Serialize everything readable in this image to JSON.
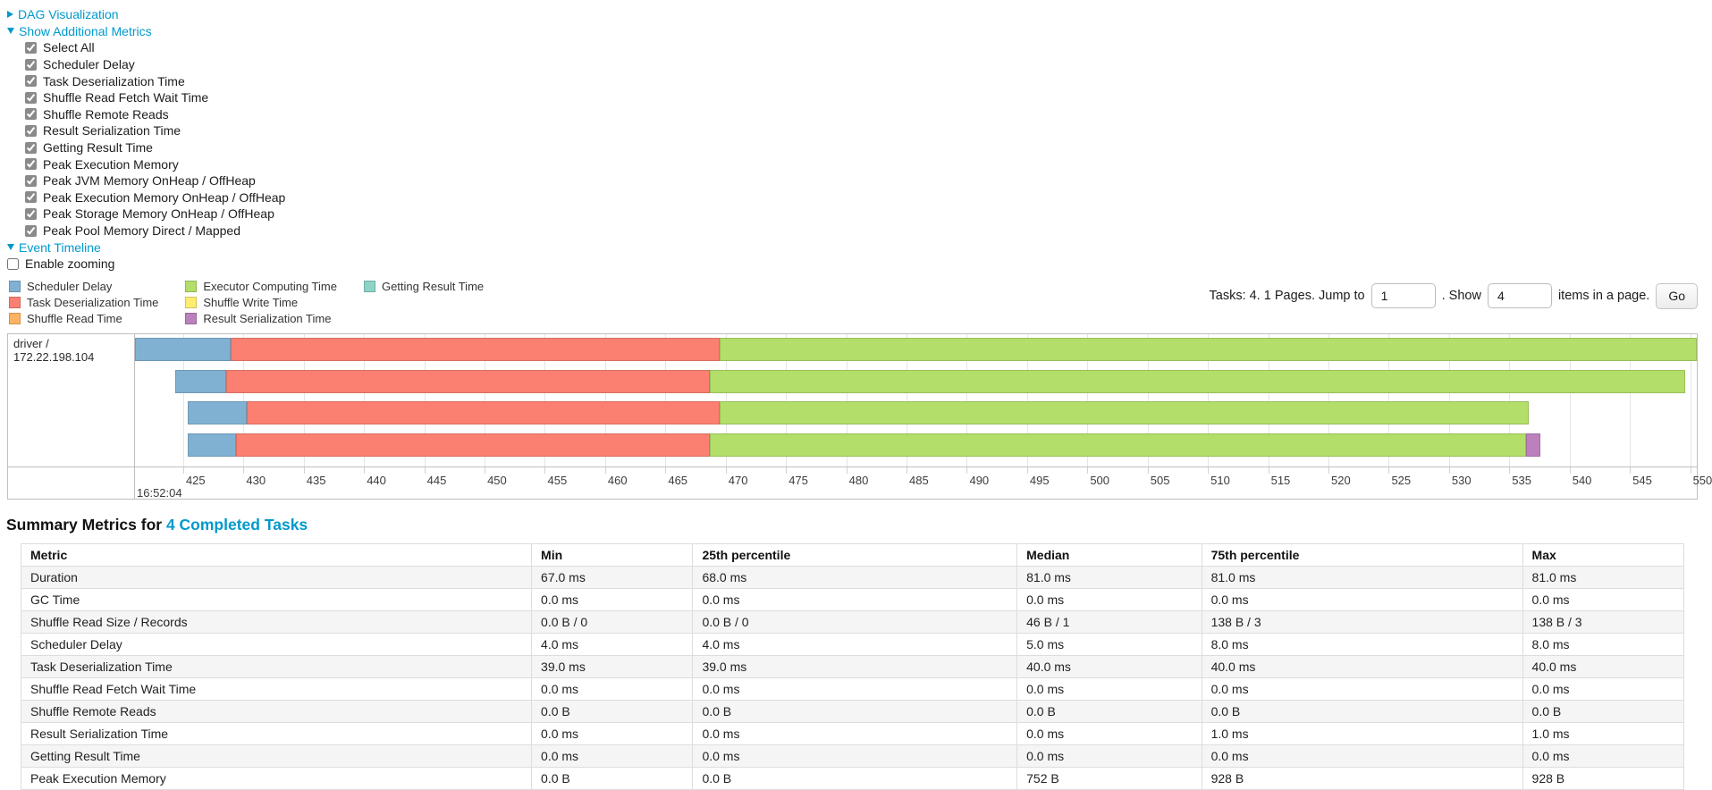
{
  "controls": {
    "dag": {
      "label": "DAG Visualization",
      "expanded": false
    },
    "metrics_toggle": {
      "label": "Show Additional Metrics",
      "expanded": true
    },
    "metric_checkboxes": [
      "Select All",
      "Scheduler Delay",
      "Task Deserialization Time",
      "Shuffle Read Fetch Wait Time",
      "Shuffle Remote Reads",
      "Result Serialization Time",
      "Getting Result Time",
      "Peak Execution Memory",
      "Peak JVM Memory OnHeap / OffHeap",
      "Peak Execution Memory OnHeap / OffHeap",
      "Peak Storage Memory OnHeap / OffHeap",
      "Peak Pool Memory Direct / Mapped"
    ],
    "event_timeline": {
      "label": "Event Timeline",
      "expanded": true
    },
    "enable_zooming": {
      "label": "Enable zooming",
      "checked": false
    }
  },
  "pagination": {
    "tasks_text": "Tasks: 4. 1 Pages. Jump to",
    "jump_value": "1",
    "show_label": ". Show",
    "show_value": "4",
    "suffix": "items in a page.",
    "go_label": "Go"
  },
  "legend": {
    "columns": [
      [
        {
          "key": "scheduler_delay",
          "label": "Scheduler Delay"
        },
        {
          "key": "task_deserialization",
          "label": "Task Deserialization Time"
        },
        {
          "key": "shuffle_read",
          "label": "Shuffle Read Time"
        }
      ],
      [
        {
          "key": "executor_computing",
          "label": "Executor Computing Time"
        },
        {
          "key": "shuffle_write",
          "label": "Shuffle Write Time"
        },
        {
          "key": "result_serialization",
          "label": "Result Serialization Time"
        }
      ],
      [
        {
          "key": "getting_result",
          "label": "Getting Result Time"
        }
      ]
    ]
  },
  "chart_data": {
    "type": "timeline-stacked-bar",
    "group_label": "driver / 172.22.198.104",
    "axis": {
      "start": 421.0,
      "end": 550.55,
      "tick_start": 425,
      "tick_step": 5,
      "tick_end": 550,
      "time_label": "16:52:04"
    },
    "colors": {
      "scheduler_delay": "#80B1D3",
      "task_deserialization": "#FB8072",
      "shuffle_read": "#FDB462",
      "executor_computing": "#B3DE69",
      "shuffle_write": "#FFED6F",
      "result_serialization": "#BC80BD",
      "getting_result": "#8DD3C7"
    },
    "tasks": [
      {
        "start": 421.0,
        "segments": [
          {
            "key": "scheduler_delay",
            "end": 428.9
          },
          {
            "key": "task_deserialization",
            "end": 469.5
          },
          {
            "key": "executor_computing",
            "end": 550.55
          }
        ]
      },
      {
        "start": 424.3,
        "segments": [
          {
            "key": "scheduler_delay",
            "end": 428.6
          },
          {
            "key": "task_deserialization",
            "end": 468.7
          },
          {
            "key": "executor_computing",
            "end": 549.6
          }
        ]
      },
      {
        "start": 425.4,
        "segments": [
          {
            "key": "scheduler_delay",
            "end": 430.3
          },
          {
            "key": "task_deserialization",
            "end": 469.5
          },
          {
            "key": "executor_computing",
            "end": 536.6
          }
        ]
      },
      {
        "start": 425.4,
        "segments": [
          {
            "key": "scheduler_delay",
            "end": 429.4
          },
          {
            "key": "task_deserialization",
            "end": 468.7
          },
          {
            "key": "executor_computing",
            "end": 536.4
          },
          {
            "key": "result_serialization",
            "end": 537.6
          }
        ]
      }
    ]
  },
  "summary": {
    "heading_prefix": "Summary Metrics for ",
    "heading_link": "4 Completed Tasks",
    "table": {
      "headers": [
        "Metric",
        "Min",
        "25th percentile",
        "Median",
        "75th percentile",
        "Max"
      ],
      "rows": [
        {
          "metric": "Duration",
          "values": [
            "67.0 ms",
            "68.0 ms",
            "81.0 ms",
            "81.0 ms",
            "81.0 ms"
          ]
        },
        {
          "metric": "GC Time",
          "values": [
            "0.0 ms",
            "0.0 ms",
            "0.0 ms",
            "0.0 ms",
            "0.0 ms"
          ]
        },
        {
          "metric": "Shuffle Read Size / Records",
          "values": [
            "0.0 B / 0",
            "0.0 B / 0",
            "46 B / 1",
            "138 B / 3",
            "138 B / 3"
          ]
        },
        {
          "metric": "Scheduler Delay",
          "values": [
            "4.0 ms",
            "4.0 ms",
            "5.0 ms",
            "8.0 ms",
            "8.0 ms"
          ]
        },
        {
          "metric": "Task Deserialization Time",
          "values": [
            "39.0 ms",
            "39.0 ms",
            "40.0 ms",
            "40.0 ms",
            "40.0 ms"
          ]
        },
        {
          "metric": "Shuffle Read Fetch Wait Time",
          "values": [
            "0.0 ms",
            "0.0 ms",
            "0.0 ms",
            "0.0 ms",
            "0.0 ms"
          ]
        },
        {
          "metric": "Shuffle Remote Reads",
          "values": [
            "0.0 B",
            "0.0 B",
            "0.0 B",
            "0.0 B",
            "0.0 B"
          ]
        },
        {
          "metric": "Result Serialization Time",
          "values": [
            "0.0 ms",
            "0.0 ms",
            "0.0 ms",
            "1.0 ms",
            "1.0 ms"
          ]
        },
        {
          "metric": "Getting Result Time",
          "values": [
            "0.0 ms",
            "0.0 ms",
            "0.0 ms",
            "0.0 ms",
            "0.0 ms"
          ]
        },
        {
          "metric": "Peak Execution Memory",
          "values": [
            "0.0 B",
            "0.0 B",
            "752 B",
            "928 B",
            "928 B"
          ]
        }
      ]
    }
  }
}
